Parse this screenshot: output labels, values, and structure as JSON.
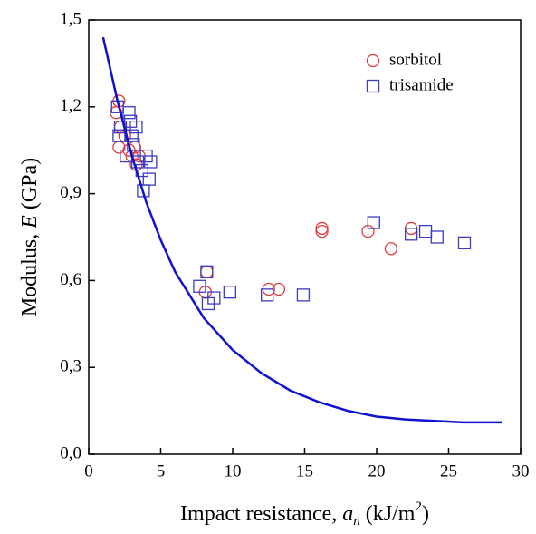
{
  "chart_data": {
    "type": "scatter",
    "xlabel": [
      "Impact resistance, ",
      "a",
      "n",
      " (kJ/m",
      "2",
      ")"
    ],
    "ylabel": [
      "Modulus, ",
      "E",
      " (GPa)"
    ],
    "xlim": [
      0,
      30
    ],
    "xticks": [
      0,
      5,
      10,
      15,
      20,
      25,
      30
    ],
    "ylim": [
      0,
      1.5
    ],
    "yticks": [
      {
        "value": 0,
        "label": "0,0"
      },
      {
        "value": 0.3,
        "label": "0,3"
      },
      {
        "value": 0.6,
        "label": "0,6"
      },
      {
        "value": 0.9,
        "label": "0,9"
      },
      {
        "value": 1.2,
        "label": "1,2"
      },
      {
        "value": 1.5,
        "label": "1,5"
      }
    ],
    "legend": "top-right",
    "series": [
      {
        "name": "sorbitol",
        "color": "#e03c3c",
        "marker": "circle",
        "x": [
          1.9,
          2.1,
          2.2,
          2.1,
          2.5,
          2.8,
          3.0,
          3.2,
          3.5,
          3.3,
          8.1,
          8.2,
          12.5,
          13.2,
          16.2,
          16.2,
          19.4,
          21.0,
          22.4
        ],
        "values": [
          1.18,
          1.22,
          1.13,
          1.06,
          1.1,
          1.05,
          1.03,
          1.06,
          1.03,
          1.0,
          0.56,
          0.63,
          0.57,
          0.57,
          0.78,
          0.77,
          0.77,
          0.71,
          0.78
        ]
      },
      {
        "name": "trisamide",
        "color": "#3b3bc4",
        "marker": "square",
        "x": [
          2.0,
          2.2,
          2.1,
          2.6,
          2.8,
          2.9,
          3.0,
          3.3,
          3.1,
          3.4,
          3.7,
          3.8,
          4.0,
          4.2,
          4.3,
          7.7,
          8.2,
          8.3,
          8.7,
          9.8,
          12.4,
          14.9,
          19.8,
          22.4,
          23.4,
          24.2,
          26.1
        ],
        "values": [
          1.2,
          1.13,
          1.1,
          1.03,
          1.18,
          1.15,
          1.1,
          1.13,
          1.07,
          1.01,
          0.98,
          0.91,
          1.03,
          0.95,
          1.01,
          0.58,
          0.63,
          0.52,
          0.54,
          0.56,
          0.55,
          0.55,
          0.8,
          0.76,
          0.77,
          0.75,
          0.73
        ]
      },
      {
        "color": "#1010d0",
        "marker": "line",
        "x": [
          1,
          2,
          3,
          4,
          5,
          6,
          8,
          10,
          12,
          14,
          16,
          18,
          20,
          22,
          24,
          26,
          28.7
        ],
        "values": [
          1.44,
          1.22,
          1.03,
          0.87,
          0.74,
          0.63,
          0.47,
          0.36,
          0.28,
          0.22,
          0.18,
          0.15,
          0.13,
          0.12,
          0.115,
          0.11,
          0.11
        ]
      }
    ]
  }
}
